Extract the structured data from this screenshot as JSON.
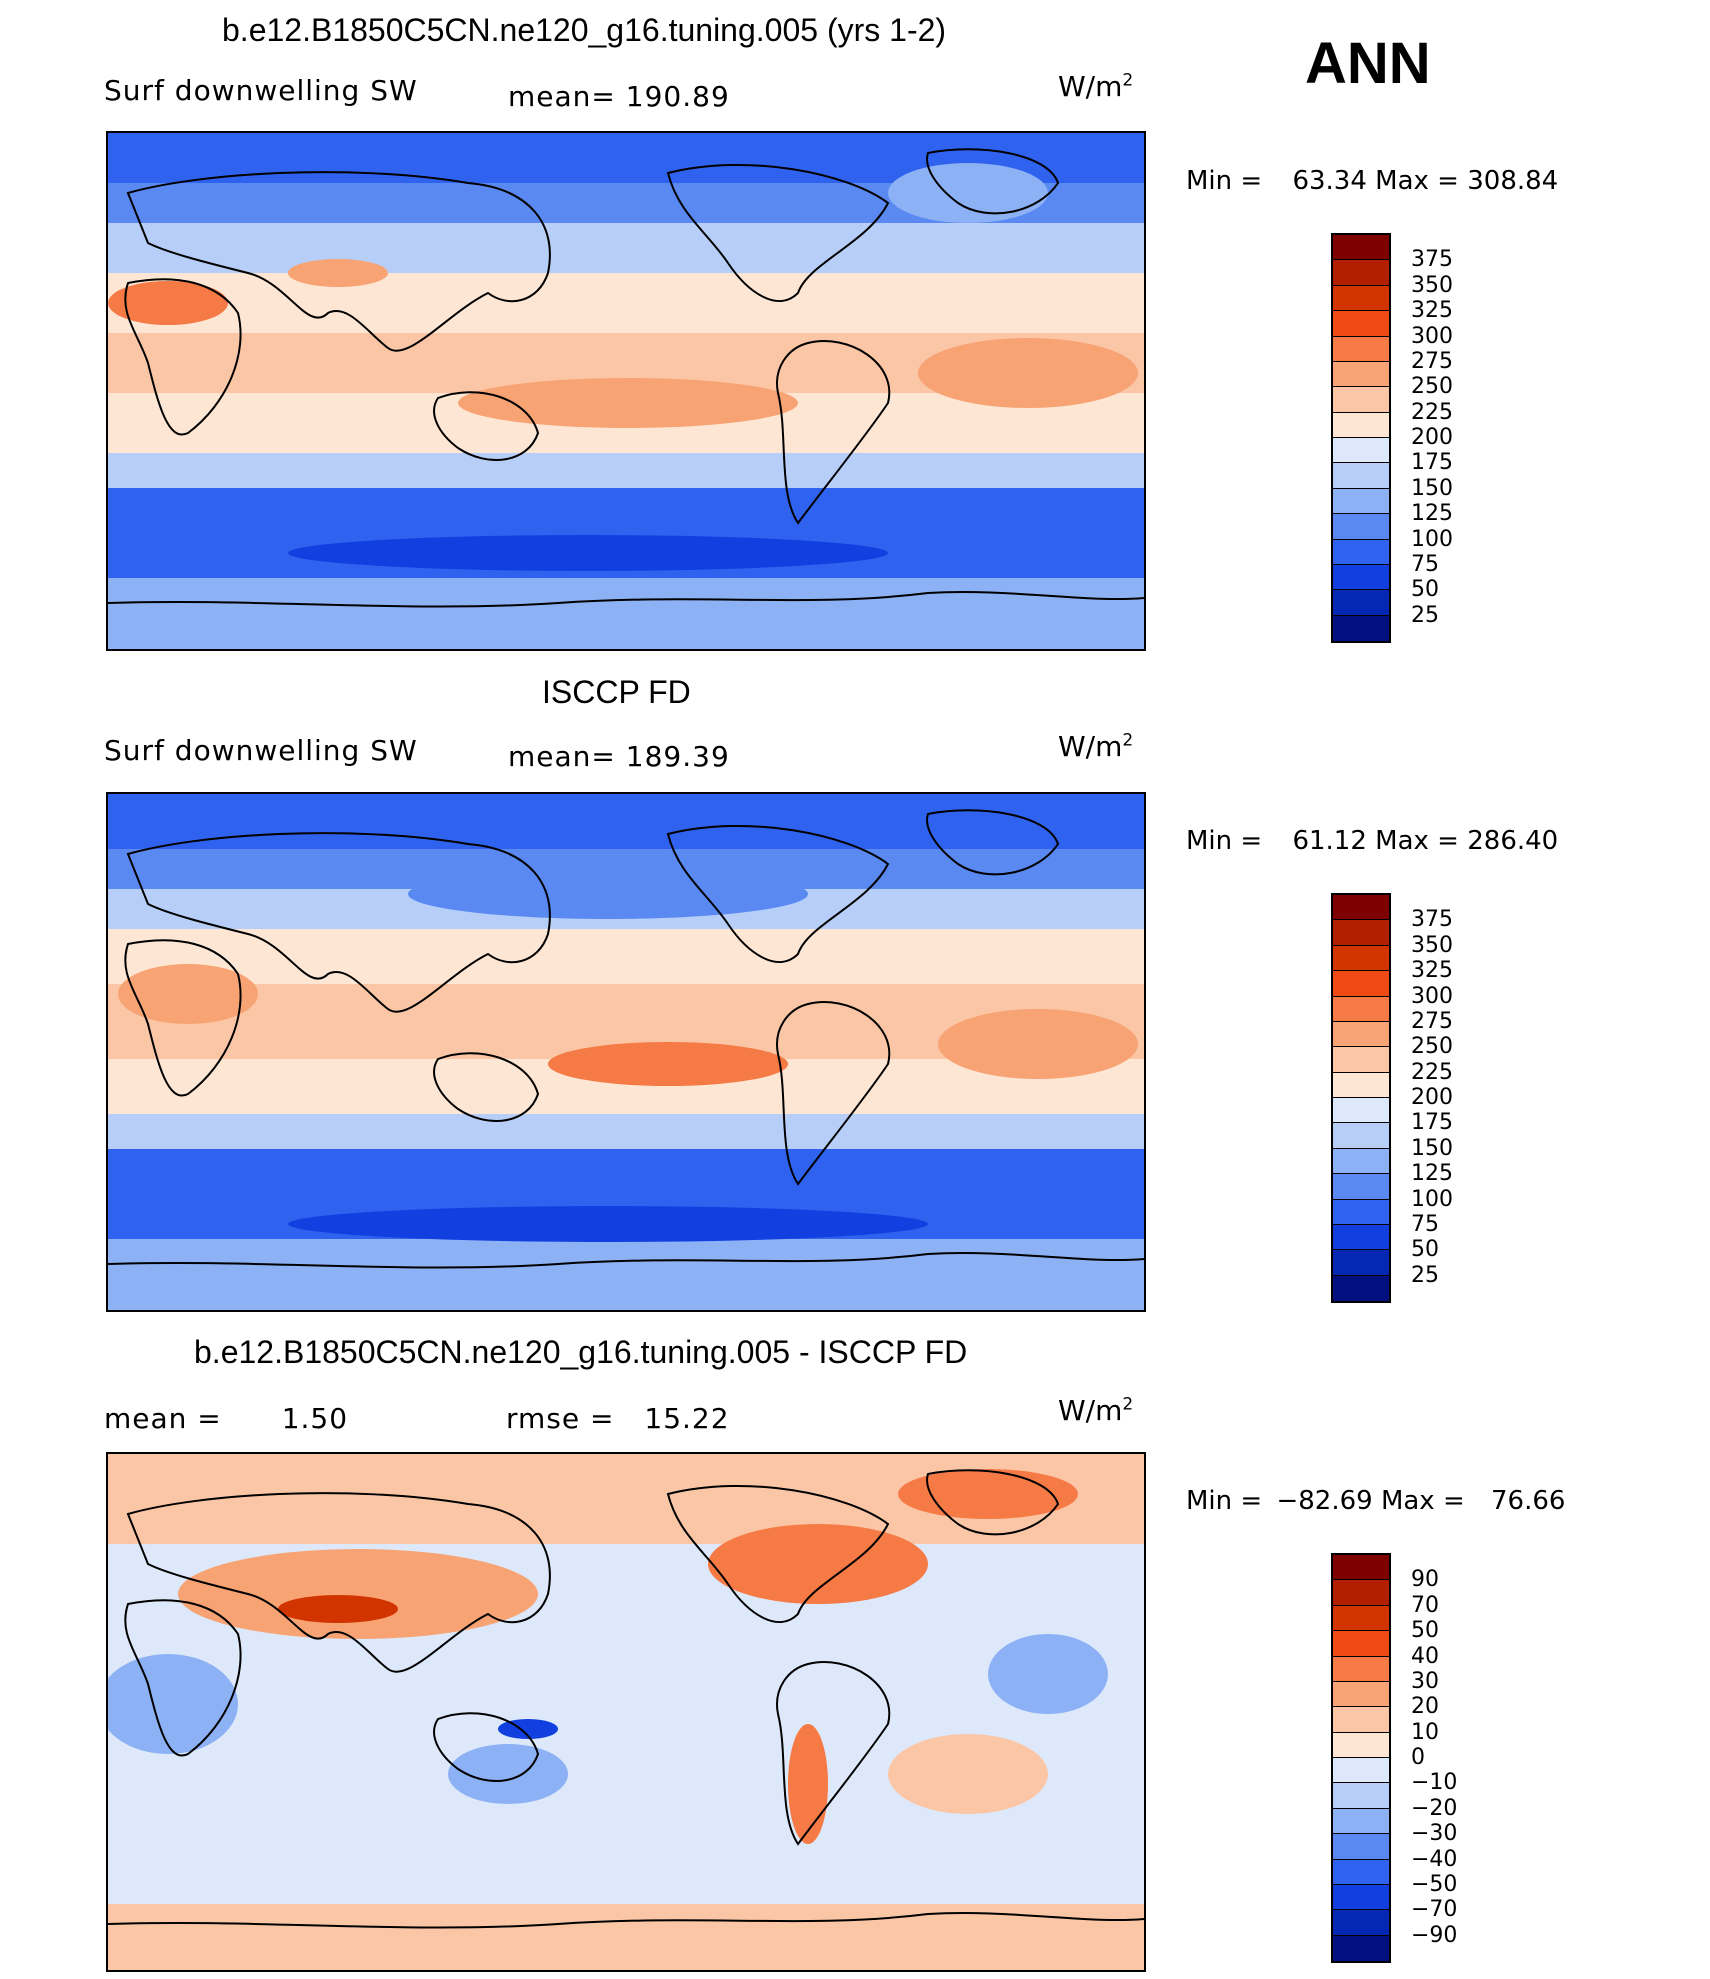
{
  "season_label": "ANN",
  "units": "W/m",
  "units_exp": "2",
  "panels": [
    {
      "title": "b.e12.B1850C5CN.ne120_g16.tuning.005 (yrs 1-2)",
      "left_label": "Surf  downwelling  SW",
      "stat1_label": "mean=",
      "stat1_value": "190.89",
      "stat2_label": "",
      "stat2_value": "",
      "min_label": "Min  =",
      "min_value": "63.34",
      "max_label": "Max  =",
      "max_value": "308.84",
      "levels": [
        "375",
        "350",
        "325",
        "300",
        "275",
        "250",
        "225",
        "200",
        "175",
        "150",
        "125",
        "100",
        "75",
        "50",
        "25"
      ]
    },
    {
      "title": "ISCCP FD",
      "left_label": "Surf  downwelling  SW",
      "stat1_label": "mean=",
      "stat1_value": "189.39",
      "stat2_label": "",
      "stat2_value": "",
      "min_label": "Min  =",
      "min_value": "61.12",
      "max_label": "Max  =",
      "max_value": "286.40",
      "levels": [
        "375",
        "350",
        "325",
        "300",
        "275",
        "250",
        "225",
        "200",
        "175",
        "150",
        "125",
        "100",
        "75",
        "50",
        "25"
      ]
    },
    {
      "title": "b.e12.B1850C5CN.ne120_g16.tuning.005 - ISCCP FD",
      "left_label": "mean  =",
      "stat1_label": "",
      "stat1_value": "1.50",
      "stat2_label": "rmse  =",
      "stat2_value": "15.22",
      "min_label": "Min  =",
      "min_value": "−82.69",
      "max_label": "Max  =",
      "max_value": "76.66",
      "levels": [
        "90",
        "70",
        "50",
        "40",
        "30",
        "20",
        "10",
        "0",
        "−10",
        "−20",
        "−30",
        "−40",
        "−50",
        "−70",
        "−90"
      ]
    }
  ],
  "colors": {
    "scale": [
      "#7f0000",
      "#b21e00",
      "#d23400",
      "#f04a14",
      "#f57a45",
      "#f7a374",
      "#fbc6a6",
      "#fde6d4",
      "#dde9fb",
      "#b7cff8",
      "#8cb1f5",
      "#5a89f2",
      "#2f62ef",
      "#1240e0",
      "#0528b4",
      "#021080"
    ]
  }
}
